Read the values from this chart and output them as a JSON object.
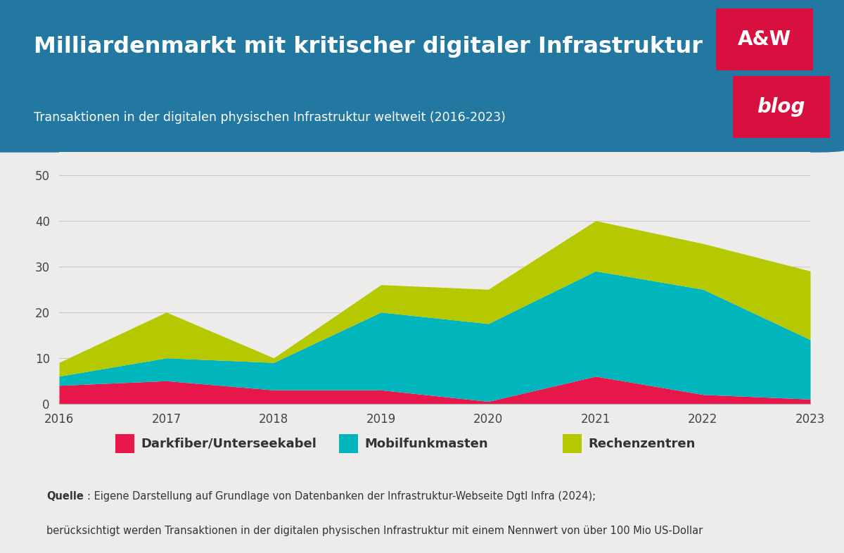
{
  "years": [
    2016,
    2017,
    2018,
    2019,
    2020,
    2021,
    2022,
    2023
  ],
  "darkfiber": [
    4,
    5,
    3,
    3,
    0.5,
    6,
    2,
    1
  ],
  "mobilfunk": [
    2,
    5,
    6,
    17,
    17,
    23,
    23,
    13
  ],
  "rechenzentren": [
    3,
    10,
    1,
    6,
    7.5,
    11,
    10,
    15
  ],
  "darkfiber_color": "#e8174b",
  "mobilfunk_color": "#00b5bc",
  "rechenzentren_color": "#b5c800",
  "background_color": "#eeeceb",
  "header_color": "#2278a0",
  "logo_color": "#d81040",
  "title": "Milliardenmarkt mit kritischer digitaler Infrastruktur",
  "subtitle": "Transaktionen in der digitalen physischen Infrastruktur weltweit (2016-2023)",
  "legend_labels": [
    "Darkfiber/Unterseekabel",
    "Mobilfunkmasten",
    "Rechenzentren"
  ],
  "source_bold": "Quelle",
  "source_line1": ": Eigene Darstellung auf Grundlage von Datenbanken der Infrastruktur-Webseite Dgtl Infra (2024);",
  "source_line2": "berücksichtigt werden Transaktionen in der digitalen physischen Infrastruktur mit einem Nennwert von über 100 Mio US-Dollar",
  "ylim": [
    0,
    55
  ],
  "yticks": [
    0,
    10,
    20,
    30,
    40,
    50
  ]
}
